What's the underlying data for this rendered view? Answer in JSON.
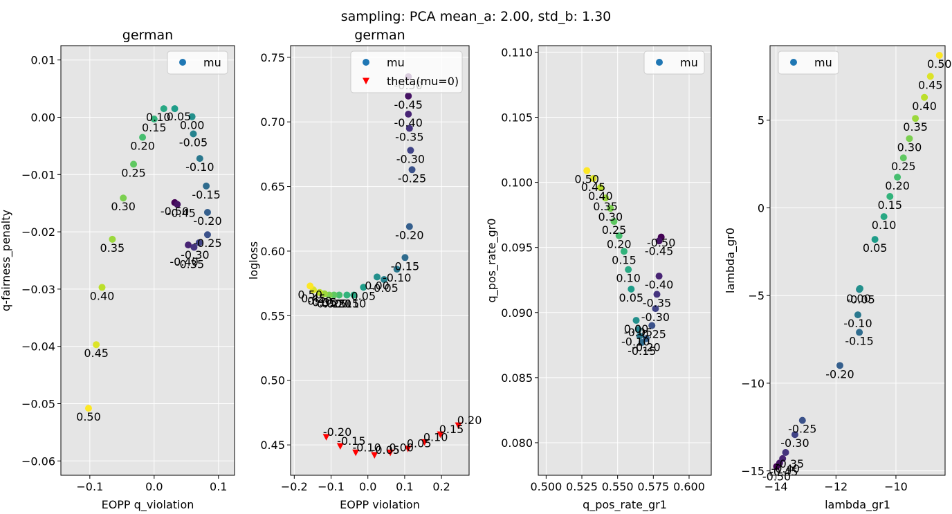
{
  "suptitle": "sampling: PCA mean_a: 2.00, std_b: 1.30",
  "colormap": "viridis",
  "theta_color": "#ff0000",
  "chart_data": [
    {
      "type": "scatter",
      "title": "german",
      "xlabel": "EOPP q_violation",
      "ylabel": "q-fairness_penalty",
      "xlim": [
        -0.145,
        0.125
      ],
      "ylim": [
        -0.0625,
        0.0125
      ],
      "xticks": [
        -0.1,
        0.0,
        0.1
      ],
      "xtick_labels": [
        "−0.1",
        "0.0",
        "0.1"
      ],
      "yticks": [
        -0.06,
        -0.05,
        -0.04,
        -0.03,
        -0.02,
        -0.01,
        0.0,
        0.01
      ],
      "ytick_labels": [
        "−0.06",
        "−0.05",
        "−0.04",
        "−0.03",
        "−0.02",
        "−0.01",
        "0.00",
        "0.01"
      ],
      "grid": true,
      "legend_position": "upper right",
      "series": [
        {
          "name": "mu",
          "marker": "circle",
          "points": [
            {
              "label": "-0.50",
              "x": 0.032,
              "y": -0.0149
            },
            {
              "label": "-0.45",
              "x": 0.036,
              "y": -0.0152
            },
            {
              "label": "-0.40",
              "x": 0.053,
              "y": -0.0223
            },
            {
              "label": "-0.35",
              "x": 0.062,
              "y": -0.0227
            },
            {
              "label": "-0.30",
              "x": 0.07,
              "y": -0.0219
            },
            {
              "label": "-0.25",
              "x": 0.083,
              "y": -0.0205
            },
            {
              "label": "-0.20",
              "x": 0.083,
              "y": -0.0166
            },
            {
              "label": "-0.15",
              "x": 0.081,
              "y": -0.012
            },
            {
              "label": "-0.10",
              "x": 0.071,
              "y": -0.0072
            },
            {
              "label": "-0.05",
              "x": 0.061,
              "y": -0.0029
            },
            {
              "label": "0.00",
              "x": 0.059,
              "y": 0.0001
            },
            {
              "label": "0.05",
              "x": 0.032,
              "y": 0.0015
            },
            {
              "label": "0.10",
              "x": 0.015,
              "y": 0.0015
            },
            {
              "label": "0.15",
              "x": 0.0,
              "y": -0.0003
            },
            {
              "label": "0.20",
              "x": -0.018,
              "y": -0.0035
            },
            {
              "label": "0.25",
              "x": -0.032,
              "y": -0.0082
            },
            {
              "label": "0.30",
              "x": -0.048,
              "y": -0.0141
            },
            {
              "label": "0.35",
              "x": -0.065,
              "y": -0.0213
            },
            {
              "label": "0.40",
              "x": -0.081,
              "y": -0.0297
            },
            {
              "label": "0.45",
              "x": -0.09,
              "y": -0.0397
            },
            {
              "label": "0.50",
              "x": -0.102,
              "y": -0.0508
            }
          ]
        }
      ]
    },
    {
      "type": "scatter",
      "title": "german",
      "xlabel": "EOPP violation",
      "ylabel": "logloss",
      "xlim": [
        -0.21,
        0.275
      ],
      "ylim": [
        0.4265,
        0.759
      ],
      "xticks": [
        -0.2,
        -0.1,
        0.0,
        0.1,
        0.2
      ],
      "xtick_labels": [
        "−0.2",
        "−0.1",
        "0.0",
        "0.1",
        "0.2"
      ],
      "yticks": [
        0.45,
        0.5,
        0.55,
        0.6,
        0.65,
        0.7,
        0.75
      ],
      "ytick_labels": [
        "0.45",
        "0.50",
        "0.55",
        "0.60",
        "0.65",
        "0.70",
        "0.75"
      ],
      "grid": true,
      "legend_position": "upper right",
      "series": [
        {
          "name": "mu",
          "marker": "circle",
          "points": [
            {
              "label": "-0.50",
              "x": 0.11,
              "y": 0.735
            },
            {
              "label": "-0.45",
              "x": 0.11,
              "y": 0.72
            },
            {
              "label": "-0.40",
              "x": 0.11,
              "y": 0.706
            },
            {
              "label": "-0.35",
              "x": 0.113,
              "y": 0.695
            },
            {
              "label": "-0.30",
              "x": 0.116,
              "y": 0.678
            },
            {
              "label": "-0.25",
              "x": 0.12,
              "y": 0.663
            },
            {
              "label": "-0.20",
              "x": 0.113,
              "y": 0.619
            },
            {
              "label": "-0.15",
              "x": 0.101,
              "y": 0.595
            },
            {
              "label": "-0.10",
              "x": 0.079,
              "y": 0.586
            },
            {
              "label": "-0.05",
              "x": 0.044,
              "y": 0.578
            },
            {
              "label": "0.00",
              "x": 0.025,
              "y": 0.58
            },
            {
              "label": "0.05",
              "x": -0.012,
              "y": 0.572
            },
            {
              "label": "0.10",
              "x": -0.038,
              "y": 0.566
            },
            {
              "label": "0.15",
              "x": -0.057,
              "y": 0.566
            },
            {
              "label": "0.20",
              "x": -0.078,
              "y": 0.566
            },
            {
              "label": "0.25",
              "x": -0.092,
              "y": 0.566
            },
            {
              "label": "0.30",
              "x": -0.105,
              "y": 0.566
            },
            {
              "label": "0.35",
              "x": -0.118,
              "y": 0.567
            },
            {
              "label": "0.40",
              "x": -0.131,
              "y": 0.568
            },
            {
              "label": "0.45",
              "x": -0.148,
              "y": 0.57
            },
            {
              "label": "0.50",
              "x": -0.157,
              "y": 0.573
            }
          ]
        },
        {
          "name": "theta(mu=0)",
          "marker": "triangle-down",
          "color": "#ff0000",
          "points": [
            {
              "label": "-0.20",
              "x": -0.113,
              "y": 0.456
            },
            {
              "label": "-0.15",
              "x": -0.075,
              "y": 0.449
            },
            {
              "label": "-0.10",
              "x": -0.033,
              "y": 0.444
            },
            {
              "label": "-0.05",
              "x": 0.018,
              "y": 0.442
            },
            {
              "label": "0.00",
              "x": 0.061,
              "y": 0.444
            },
            {
              "label": "0.05",
              "x": 0.109,
              "y": 0.447
            },
            {
              "label": "0.10",
              "x": 0.154,
              "y": 0.452
            },
            {
              "label": "0.15",
              "x": 0.197,
              "y": 0.458
            },
            {
              "label": "0.20",
              "x": 0.246,
              "y": 0.465
            }
          ]
        }
      ]
    },
    {
      "type": "scatter",
      "xlabel": "q_pos_rate_gr1",
      "ylabel": "q_pos_rate_gr0",
      "xlim": [
        0.4945,
        0.6155
      ],
      "ylim": [
        0.0775,
        0.1105
      ],
      "xticks": [
        0.5,
        0.525,
        0.55,
        0.575,
        0.6
      ],
      "xtick_labels": [
        "0.500",
        "0.525",
        "0.550",
        "0.575",
        "0.600"
      ],
      "yticks": [
        0.08,
        0.085,
        0.09,
        0.095,
        0.1,
        0.105,
        0.11
      ],
      "ytick_labels": [
        "0.080",
        "0.085",
        "0.090",
        "0.095",
        "0.100",
        "0.105",
        "0.110"
      ],
      "grid": true,
      "legend_position": "upper right",
      "series": [
        {
          "name": "mu",
          "marker": "circle",
          "points": [
            {
              "label": "-0.50",
              "x": 0.5805,
              "y": 0.0958
            },
            {
              "label": "-0.45",
              "x": 0.579,
              "y": 0.0955
            },
            {
              "label": "-0.40",
              "x": 0.579,
              "y": 0.0928
            },
            {
              "label": "-0.35",
              "x": 0.5775,
              "y": 0.0914
            },
            {
              "label": "-0.30",
              "x": 0.5765,
              "y": 0.0903
            },
            {
              "label": "-0.25",
              "x": 0.574,
              "y": 0.089
            },
            {
              "label": "-0.20",
              "x": 0.57,
              "y": 0.088
            },
            {
              "label": "-0.15",
              "x": 0.567,
              "y": 0.0877
            },
            {
              "label": "-0.10",
              "x": 0.5655,
              "y": 0.0882
            },
            {
              "label": "-0.05",
              "x": 0.5645,
              "y": 0.0887
            },
            {
              "label": "0.00",
              "x": 0.563,
              "y": 0.0894
            },
            {
              "label": "0.05",
              "x": 0.5595,
              "y": 0.0918
            },
            {
              "label": "0.10",
              "x": 0.5575,
              "y": 0.0933
            },
            {
              "label": "0.15",
              "x": 0.5545,
              "y": 0.0947
            },
            {
              "label": "0.20",
              "x": 0.551,
              "y": 0.0959
            },
            {
              "label": "0.25",
              "x": 0.5475,
              "y": 0.097
            },
            {
              "label": "0.30",
              "x": 0.545,
              "y": 0.098
            },
            {
              "label": "0.35",
              "x": 0.5415,
              "y": 0.0988
            },
            {
              "label": "0.40",
              "x": 0.538,
              "y": 0.0996
            },
            {
              "label": "0.45",
              "x": 0.533,
              "y": 0.1003
            },
            {
              "label": "0.50",
              "x": 0.5285,
              "y": 0.1009
            }
          ]
        }
      ]
    },
    {
      "type": "scatter",
      "xlabel": "lambda_gr1",
      "ylabel": "lambda_gr0",
      "xlim": [
        -14.2,
        -8.36
      ],
      "ylim": [
        -15.25,
        9.25
      ],
      "xticks": [
        -14,
        -12,
        -10
      ],
      "xtick_labels": [
        "−14",
        "−12",
        "−10"
      ],
      "yticks": [
        -15,
        -10,
        -5,
        0,
        5
      ],
      "ytick_labels": [
        "−15",
        "−10",
        "−5",
        "0",
        "5"
      ],
      "grid": true,
      "legend_position": "upper left",
      "series": [
        {
          "name": "mu",
          "marker": "circle",
          "points": [
            {
              "label": "-0.50",
              "x": -13.98,
              "y": -14.75
            },
            {
              "label": "-0.45",
              "x": -13.88,
              "y": -14.55
            },
            {
              "label": "-0.40",
              "x": -13.78,
              "y": -14.3
            },
            {
              "label": "-0.35",
              "x": -13.68,
              "y": -13.95
            },
            {
              "label": "-0.30",
              "x": -13.37,
              "y": -12.93
            },
            {
              "label": "-0.25",
              "x": -13.12,
              "y": -12.12
            },
            {
              "label": "-0.20",
              "x": -11.87,
              "y": -8.99
            },
            {
              "label": "-0.15",
              "x": -11.22,
              "y": -7.1
            },
            {
              "label": "-0.10",
              "x": -11.27,
              "y": -6.1
            },
            {
              "label": "-0.05",
              "x": -11.22,
              "y": -4.65
            },
            {
              "label": "0.00",
              "x": -11.2,
              "y": -4.6
            },
            {
              "label": "0.05",
              "x": -10.7,
              "y": -1.8
            },
            {
              "label": "0.10",
              "x": -10.4,
              "y": -0.5
            },
            {
              "label": "0.15",
              "x": -10.2,
              "y": 0.65
            },
            {
              "label": "0.20",
              "x": -9.95,
              "y": 1.75
            },
            {
              "label": "0.25",
              "x": -9.75,
              "y": 2.85
            },
            {
              "label": "0.30",
              "x": -9.55,
              "y": 3.95
            },
            {
              "label": "0.35",
              "x": -9.35,
              "y": 5.1
            },
            {
              "label": "0.40",
              "x": -9.05,
              "y": 6.3
            },
            {
              "label": "0.45",
              "x": -8.85,
              "y": 7.5
            },
            {
              "label": "0.50",
              "x": -8.55,
              "y": 8.7
            }
          ]
        }
      ]
    }
  ]
}
